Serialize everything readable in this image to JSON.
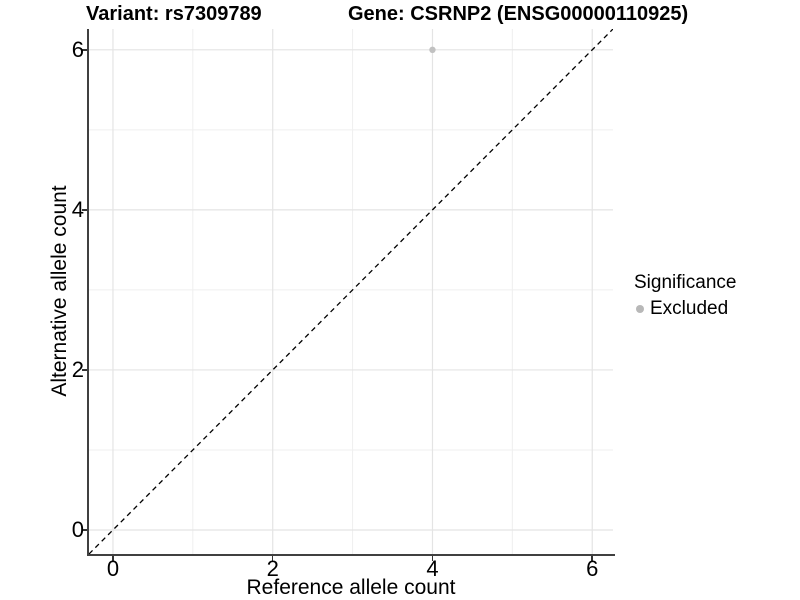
{
  "titles": {
    "variant": "Variant: rs7309789",
    "gene": "Gene: CSRNP2 (ENSG00000110925)"
  },
  "axes": {
    "x_label": "Reference allele count",
    "y_label": "Alternative allele count",
    "x_tick_labels": [
      "0",
      "2",
      "4",
      "6"
    ],
    "y_tick_labels": [
      "0",
      "2",
      "4",
      "6"
    ]
  },
  "legend": {
    "title": "Significance",
    "items": [
      {
        "label": "Excluded",
        "color": "#b8b8b8"
      }
    ]
  },
  "chart_data": {
    "type": "scatter",
    "title": "Variant: rs7309789 | Gene: CSRNP2 (ENSG00000110925)",
    "xlabel": "Reference allele count",
    "ylabel": "Alternative allele count",
    "xlim": [
      -0.3,
      6.26
    ],
    "ylim": [
      -0.3,
      6.26
    ],
    "major_ticks": [
      0,
      2,
      4,
      6
    ],
    "minor_ticks": [
      1,
      3,
      5
    ],
    "grid": "major+minor",
    "legend_position": "right",
    "series": [
      {
        "name": "Excluded",
        "color": "#c1c1c1",
        "points": [
          {
            "x": 4,
            "y": 6
          }
        ]
      }
    ],
    "reference_line": {
      "type": "identity y=x",
      "style": "dashed",
      "color": "#000000"
    }
  },
  "colors": {
    "background": "#ffffff",
    "axis_line": "#404040",
    "tick_mark": "#333333",
    "grid_major": "#e4e4e4",
    "grid_minor": "#efefef",
    "dashed_line": "#000000",
    "point_excluded": "#c1c1c1",
    "legend_dot": "#b2b2b2"
  }
}
